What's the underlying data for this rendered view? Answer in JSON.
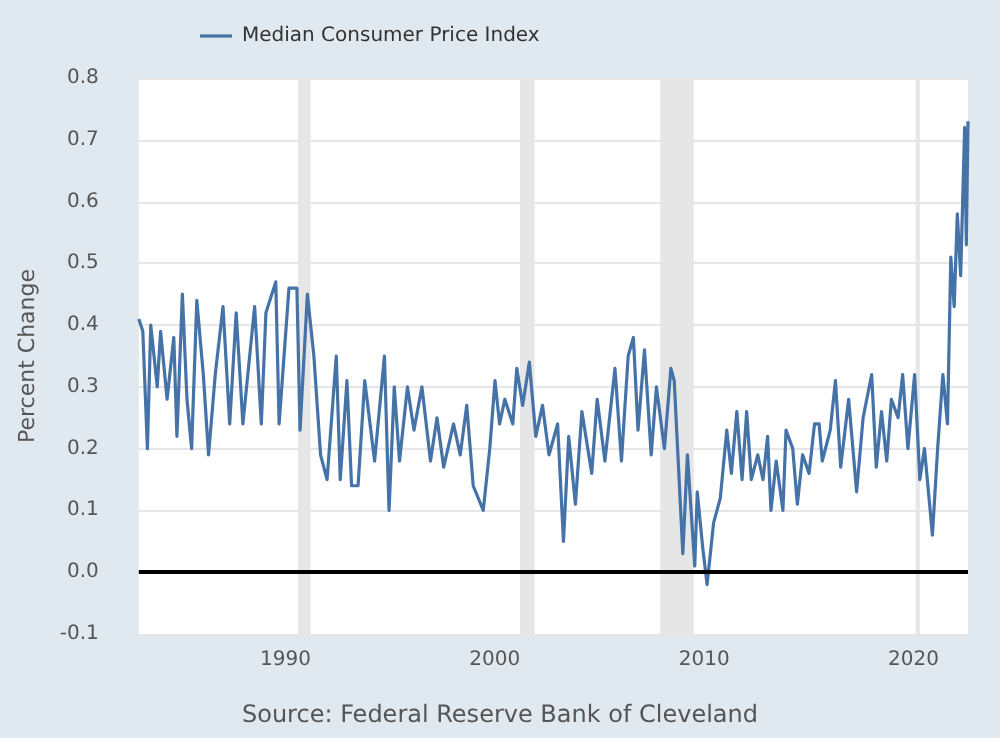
{
  "chart_data": {
    "type": "line",
    "ylabel": "Percent Change",
    "legend": "top left",
    "grid": "y",
    "xlim": [
      1983,
      2022.6
    ],
    "xticks": [
      1990,
      2000,
      2010,
      2020
    ],
    "ylim": [
      -0.1,
      0.8
    ],
    "yticks": [
      {
        "value": -0.1,
        "label": "-0.1"
      },
      {
        "value": 0,
        "label": "0.0"
      },
      0.1,
      0.2,
      0.3,
      0.4,
      0.5,
      0.6,
      0.7,
      0.8
    ],
    "ref_lines": [
      {
        "axis": "y",
        "value": 0,
        "color": "#000000"
      }
    ],
    "bands": [
      {
        "axis": "x",
        "from": 1990.6,
        "to": 1991.2,
        "color": "#e6e6e6"
      },
      {
        "axis": "x",
        "from": 2001.2,
        "to": 2001.9,
        "color": "#e6e6e6"
      },
      {
        "axis": "x",
        "from": 2007.9,
        "to": 2009.5,
        "color": "#e6e6e6"
      },
      {
        "axis": "x",
        "from": 2020.1,
        "to": 2020.3,
        "color": "#e6e6e6"
      }
    ],
    "annotations": [
      "Source: Federal Reserve Bank of Cleveland"
    ],
    "series": [
      {
        "name": "Median Consumer Price Index",
        "color": "#4572a7",
        "x": [
          1983.0,
          1983.19,
          1983.41,
          1983.57,
          1983.88,
          1984.04,
          1984.35,
          1984.67,
          1984.82,
          1985.08,
          1985.3,
          1985.52,
          1985.77,
          1986.08,
          1986.33,
          1986.65,
          1987.02,
          1987.34,
          1987.65,
          1987.97,
          1988.53,
          1988.85,
          1989.07,
          1989.54,
          1989.7,
          1990.17,
          1990.55,
          1990.7,
          1991.05,
          1991.36,
          1991.68,
          1991.99,
          1992.43,
          1992.62,
          1992.94,
          1993.16,
          1993.47,
          1993.79,
          1994.26,
          1994.73,
          1994.95,
          1995.2,
          1995.45,
          1995.83,
          1996.14,
          1996.52,
          1996.93,
          1997.24,
          1997.56,
          1998.03,
          1998.35,
          1998.66,
          1998.97,
          1999.45,
          1999.76,
          2000.01,
          2000.23,
          2000.48,
          2000.86,
          2001.05,
          2001.33,
          2001.65,
          2001.96,
          2002.28,
          2002.59,
          2003.0,
          2003.28,
          2003.53,
          2003.85,
          2004.16,
          2004.63,
          2004.89,
          2005.26,
          2005.74,
          2006.05,
          2006.37,
          2006.62,
          2006.84,
          2007.15,
          2007.47,
          2007.72,
          2008.1,
          2008.41,
          2008.57,
          2008.98,
          2009.2,
          2009.55,
          2009.67,
          2009.93,
          2010.14,
          2010.45,
          2010.77,
          2011.08,
          2011.3,
          2011.56,
          2011.81,
          2012.03,
          2012.25,
          2012.56,
          2012.81,
          2013.03,
          2013.19,
          2013.44,
          2013.76,
          2013.91,
          2014.23,
          2014.45,
          2014.7,
          2015.01,
          2015.27,
          2015.49,
          2015.64,
          2016.02,
          2016.27,
          2016.52,
          2016.9,
          2017.28,
          2017.59,
          2018.0,
          2018.22,
          2018.47,
          2018.72,
          2018.94,
          2019.26,
          2019.48,
          2019.73,
          2020.05,
          2020.3,
          2020.52,
          2020.74,
          2020.9,
          2021.15,
          2021.4,
          2021.62,
          2021.78,
          2021.94,
          2022.09,
          2022.25,
          2022.44,
          2022.52,
          2022.6
        ],
        "values": [
          0.41,
          0.39,
          0.2,
          0.4,
          0.3,
          0.39,
          0.28,
          0.38,
          0.22,
          0.45,
          0.28,
          0.2,
          0.44,
          0.32,
          0.19,
          0.32,
          0.43,
          0.24,
          0.42,
          0.24,
          0.43,
          0.24,
          0.42,
          0.47,
          0.24,
          0.46,
          0.46,
          0.23,
          0.45,
          0.35,
          0.19,
          0.15,
          0.35,
          0.15,
          0.31,
          0.14,
          0.14,
          0.31,
          0.18,
          0.35,
          0.1,
          0.3,
          0.18,
          0.3,
          0.23,
          0.3,
          0.18,
          0.25,
          0.17,
          0.24,
          0.19,
          0.27,
          0.14,
          0.1,
          0.2,
          0.31,
          0.24,
          0.28,
          0.24,
          0.33,
          0.27,
          0.34,
          0.22,
          0.27,
          0.19,
          0.24,
          0.05,
          0.22,
          0.11,
          0.26,
          0.16,
          0.28,
          0.18,
          0.33,
          0.18,
          0.35,
          0.38,
          0.23,
          0.36,
          0.19,
          0.3,
          0.2,
          0.33,
          0.31,
          0.03,
          0.19,
          0.01,
          0.13,
          0.04,
          -0.02,
          0.08,
          0.12,
          0.23,
          0.16,
          0.26,
          0.15,
          0.26,
          0.15,
          0.19,
          0.15,
          0.22,
          0.1,
          0.18,
          0.1,
          0.23,
          0.2,
          0.11,
          0.19,
          0.16,
          0.24,
          0.24,
          0.18,
          0.23,
          0.31,
          0.17,
          0.28,
          0.13,
          0.25,
          0.32,
          0.17,
          0.26,
          0.18,
          0.28,
          0.25,
          0.32,
          0.2,
          0.32,
          0.15,
          0.2,
          0.12,
          0.06,
          0.2,
          0.32,
          0.24,
          0.51,
          0.43,
          0.58,
          0.48,
          0.72,
          0.53,
          0.73
        ]
      }
    ]
  }
}
